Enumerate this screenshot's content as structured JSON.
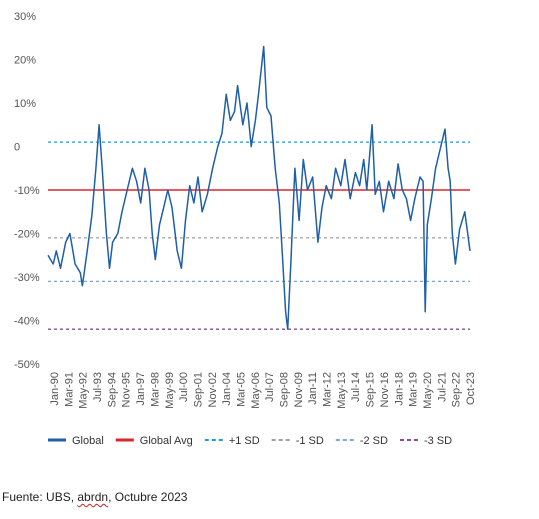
{
  "chart_data": {
    "type": "line",
    "title": "",
    "xlabel": "",
    "ylabel": "",
    "ylim": [
      -50,
      30
    ],
    "y_ticks": [
      {
        "value": 30,
        "label": "30%"
      },
      {
        "value": 20,
        "label": "20%"
      },
      {
        "value": 10,
        "label": "10%"
      },
      {
        "value": 0,
        "label": "0"
      },
      {
        "value": -10,
        "label": "-10%"
      },
      {
        "value": -20,
        "label": "-20%"
      },
      {
        "value": -30,
        "label": "-30%"
      },
      {
        "value": -40,
        "label": "-40%"
      },
      {
        "value": -50,
        "label": "-50%"
      }
    ],
    "x_ticks": [
      "Jan-90",
      "Mar-91",
      "May-92",
      "Jul-93",
      "Sep-94",
      "Nov-95",
      "Jan-97",
      "Mar-98",
      "May-99",
      "Jul-00",
      "Sep-01",
      "Nov-02",
      "Jan-04",
      "Mar-05",
      "May-06",
      "Jul-07",
      "Sep-08",
      "Nov-09",
      "Jan-11",
      "Mar-12",
      "May-13",
      "Jul-14",
      "Sep-15",
      "Nov-16",
      "Jan-18",
      "Mar-19",
      "May-20",
      "Jul-21",
      "Sep-22",
      "Oct-23"
    ],
    "x_range": [
      "1990-01",
      "2023-10"
    ],
    "grid": false,
    "legend_position": "bottom",
    "series": [
      {
        "name": "Global",
        "color": "#1f5fa6",
        "style": "solid",
        "points": [
          [
            "1990-01",
            -25
          ],
          [
            "1990-06",
            -27
          ],
          [
            "1990-09",
            -24
          ],
          [
            "1991-01",
            -28
          ],
          [
            "1991-06",
            -22
          ],
          [
            "1991-10",
            -20
          ],
          [
            "1992-03",
            -27
          ],
          [
            "1992-08",
            -29
          ],
          [
            "1992-10",
            -32
          ],
          [
            "1993-02",
            -25
          ],
          [
            "1993-07",
            -16
          ],
          [
            "1993-11",
            -5
          ],
          [
            "1994-02",
            5
          ],
          [
            "1994-05",
            -5
          ],
          [
            "1994-09",
            -20
          ],
          [
            "1994-12",
            -28
          ],
          [
            "1995-03",
            -22
          ],
          [
            "1995-08",
            -20
          ],
          [
            "1995-12",
            -15
          ],
          [
            "1996-05",
            -10
          ],
          [
            "1996-10",
            -5
          ],
          [
            "1997-02",
            -8
          ],
          [
            "1997-06",
            -13
          ],
          [
            "1997-10",
            -5
          ],
          [
            "1998-02",
            -10
          ],
          [
            "1998-05",
            -20
          ],
          [
            "1998-08",
            -26
          ],
          [
            "1998-12",
            -18
          ],
          [
            "1999-04",
            -14
          ],
          [
            "1999-08",
            -10
          ],
          [
            "1999-12",
            -14
          ],
          [
            "2000-05",
            -24
          ],
          [
            "2000-09",
            -28
          ],
          [
            "2001-01",
            -17
          ],
          [
            "2001-05",
            -9
          ],
          [
            "2001-09",
            -13
          ],
          [
            "2002-01",
            -7
          ],
          [
            "2002-05",
            -15
          ],
          [
            "2002-10",
            -11
          ],
          [
            "2003-03",
            -5
          ],
          [
            "2003-08",
            0
          ],
          [
            "2003-12",
            3
          ],
          [
            "2004-04",
            12
          ],
          [
            "2004-08",
            6
          ],
          [
            "2004-12",
            8
          ],
          [
            "2005-03",
            14
          ],
          [
            "2005-08",
            5
          ],
          [
            "2005-12",
            10
          ],
          [
            "2006-04",
            0
          ],
          [
            "2006-08",
            6
          ],
          [
            "2006-11",
            12
          ],
          [
            "2007-04",
            23
          ],
          [
            "2007-07",
            9
          ],
          [
            "2007-11",
            7
          ],
          [
            "2008-03",
            -5
          ],
          [
            "2008-07",
            -13
          ],
          [
            "2008-10",
            -25
          ],
          [
            "2009-01",
            -38
          ],
          [
            "2009-03",
            -42
          ],
          [
            "2009-06",
            -27
          ],
          [
            "2009-10",
            -5
          ],
          [
            "2010-02",
            -17
          ],
          [
            "2010-06",
            -3
          ],
          [
            "2010-10",
            -10
          ],
          [
            "2011-03",
            -7
          ],
          [
            "2011-08",
            -22
          ],
          [
            "2011-12",
            -14
          ],
          [
            "2012-04",
            -9
          ],
          [
            "2012-09",
            -12
          ],
          [
            "2013-01",
            -5
          ],
          [
            "2013-06",
            -9
          ],
          [
            "2013-10",
            -3
          ],
          [
            "2014-03",
            -12
          ],
          [
            "2014-08",
            -6
          ],
          [
            "2014-12",
            -9
          ],
          [
            "2015-04",
            -3
          ],
          [
            "2015-07",
            -10
          ],
          [
            "2015-12",
            5
          ],
          [
            "2016-03",
            -11
          ],
          [
            "2016-07",
            -8
          ],
          [
            "2016-11",
            -15
          ],
          [
            "2017-04",
            -8
          ],
          [
            "2017-09",
            -12
          ],
          [
            "2018-01",
            -4
          ],
          [
            "2018-05",
            -10
          ],
          [
            "2018-09",
            -12
          ],
          [
            "2019-01",
            -17
          ],
          [
            "2019-05",
            -12
          ],
          [
            "2019-10",
            -7
          ],
          [
            "2020-01",
            -8
          ],
          [
            "2020-03",
            -38
          ],
          [
            "2020-05",
            -18
          ],
          [
            "2020-09",
            -12
          ],
          [
            "2021-01",
            -5
          ],
          [
            "2021-06",
            0
          ],
          [
            "2021-10",
            4
          ],
          [
            "2022-01",
            -5
          ],
          [
            "2022-03",
            -8
          ],
          [
            "2022-05",
            -20
          ],
          [
            "2022-08",
            -27
          ],
          [
            "2022-12",
            -19
          ],
          [
            "2023-05",
            -15
          ],
          [
            "2023-10",
            -24
          ]
        ]
      },
      {
        "name": "Global Avg",
        "color": "#d9262e",
        "style": "solid",
        "value": -10
      },
      {
        "name": "+1 SD",
        "color": "#1a9bd7",
        "style": "dashed",
        "value": 1
      },
      {
        "name": "-1 SD",
        "color": "#a0a0a0",
        "style": "dashed",
        "value": -21
      },
      {
        "name": "-2 SD",
        "color": "#7fa7d6",
        "style": "dashed",
        "value": -31
      },
      {
        "name": "-3 SD",
        "color": "#8a4f8a",
        "style": "dashed",
        "value": -42
      }
    ]
  },
  "source_note": {
    "prefix": "Fuente: UBS, ",
    "underlined": "abrdn",
    "suffix": ", Octubre 2023"
  }
}
